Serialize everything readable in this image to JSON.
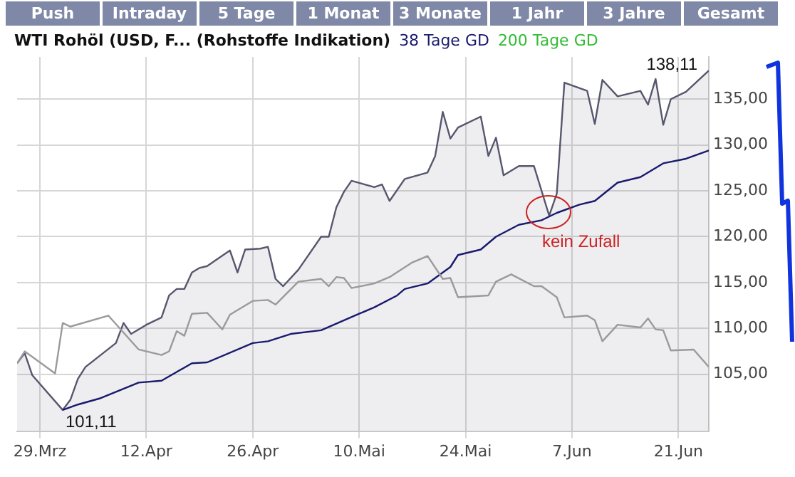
{
  "chart_data": {
    "type": "line",
    "title": "WTI Rohöl (USD, F... (Rohstoffe Indikation)",
    "annotations": [
      "Push",
      "Intraday",
      "5 Tage",
      "1 Monat",
      "3 Monate",
      "1 Jahr",
      "3 Jahre",
      "Gesamt",
      {
        "text": "kein Zufall",
        "x": "--06-04",
        "y": 122.5
      },
      {
        "text": "138,11",
        "x": "--06-25",
        "y": 138.11
      },
      {
        "text": "101,11",
        "x": "--04-01",
        "y": 101.11
      }
    ],
    "series": [
      {
        "type": "area",
        "color": "#56566e",
        "x": [
          "--03-26",
          "--03-27",
          "--03-28",
          "--04-01",
          "--04-02",
          "--04-03",
          "--04-04",
          "--04-06",
          "--04-08",
          "--04-09",
          "--04-10",
          "--04-12",
          "--04-14",
          "--04-15",
          "--04-16",
          "--04-17",
          "--04-18",
          "--04-19",
          "--04-20",
          "--04-23",
          "--04-24",
          "--04-25",
          "--04-27",
          "--04-28",
          "--04-29",
          "--04-30",
          "--05-02",
          "--05-05",
          "--05-06",
          "--05-07",
          "--05-08",
          "--05-09",
          "--05-12",
          "--05-13",
          "--05-14",
          "--05-16",
          "--05-19",
          "--05-20",
          "--05-21",
          "--05-22",
          "--05-23",
          "--05-26",
          "--05-27",
          "--05-28",
          "--05-29",
          "--05-31",
          "--06-02",
          "--06-04",
          "--06-05",
          "--06-06",
          "--06-09",
          "--06-10",
          "--06-11",
          "--06-13",
          "--06-16",
          "--06-17",
          "--06-18",
          "--06-19",
          "--06-20",
          "--06-22",
          "--06-25"
        ],
        "values": [
          106.2,
          107.3,
          104.9,
          101.11,
          102.2,
          104.5,
          105.8,
          107.1,
          108.4,
          110.6,
          109.4,
          110.4,
          111.2,
          113.6,
          114.3,
          114.3,
          116.1,
          116.6,
          116.8,
          118.5,
          116.1,
          118.6,
          118.7,
          118.9,
          115.4,
          114.6,
          116.4,
          120.0,
          120.0,
          123.2,
          124.9,
          126.1,
          125.4,
          125.7,
          123.9,
          126.3,
          127.0,
          128.8,
          133.6,
          130.7,
          131.9,
          133.1,
          128.8,
          130.8,
          126.7,
          127.7,
          127.7,
          122.3,
          124.7,
          136.8,
          135.9,
          132.3,
          137.1,
          135.3,
          135.9,
          134.4,
          137.2,
          132.2,
          135.0,
          135.8,
          138.11
        ]
      },
      {
        "name": "38 Tage GD",
        "color": "#1a1a6e",
        "x": [
          "--04-01",
          "--04-03",
          "--04-06",
          "--04-11",
          "--04-14",
          "--04-18",
          "--04-20",
          "--04-26",
          "--04-28",
          "--05-01",
          "--05-05",
          "--05-10",
          "--05-12",
          "--05-15",
          "--05-16",
          "--05-19",
          "--05-22",
          "--05-23",
          "--05-26",
          "--05-28",
          "--05-31",
          "--06-03",
          "--06-05",
          "--06-08",
          "--06-10",
          "--06-13",
          "--06-16",
          "--06-19",
          "--06-22",
          "--06-25"
        ],
        "values": [
          101.1,
          101.7,
          102.4,
          104.1,
          104.3,
          106.2,
          106.3,
          108.4,
          108.6,
          109.4,
          109.8,
          111.6,
          112.3,
          113.6,
          114.3,
          114.9,
          116.7,
          118.0,
          118.6,
          120.0,
          121.3,
          121.8,
          122.6,
          123.5,
          123.9,
          125.9,
          126.5,
          128.0,
          128.5,
          129.4
        ]
      },
      {
        "name": "200 Tage GD",
        "color": "#33bb33"
      },
      {
        "color": "#9a9a9a",
        "x": [
          "--03-26",
          "--03-27",
          "--03-31",
          "--04-01",
          "--04-02",
          "--04-07",
          "--04-11",
          "--04-14",
          "--04-15",
          "--04-16",
          "--04-17",
          "--04-18",
          "--04-20",
          "--04-21",
          "--04-22",
          "--04-23",
          "--04-26",
          "--04-28",
          "--04-29",
          "--05-02",
          "--05-05",
          "--05-06",
          "--05-07",
          "--05-08",
          "--05-09",
          "--05-12",
          "--05-14",
          "--05-17",
          "--05-19",
          "--05-21",
          "--05-22",
          "--05-23",
          "--05-27",
          "--05-28",
          "--05-30",
          "--06-02",
          "--06-03",
          "--06-05",
          "--06-06",
          "--06-09",
          "--06-10",
          "--06-11",
          "--06-13",
          "--06-16",
          "--06-17",
          "--06-18",
          "--06-19",
          "--06-20",
          "--06-23",
          "--06-25"
        ],
        "values": [
          106.2,
          107.5,
          105.1,
          110.6,
          110.2,
          111.4,
          107.7,
          107.1,
          107.5,
          109.7,
          109.2,
          111.6,
          111.7,
          110.8,
          109.9,
          111.5,
          113.0,
          113.1,
          112.6,
          115.1,
          115.4,
          114.6,
          115.6,
          115.5,
          114.4,
          114.9,
          115.6,
          117.2,
          117.9,
          115.4,
          115.5,
          113.4,
          113.6,
          115.1,
          115.9,
          114.6,
          114.6,
          113.4,
          111.2,
          111.4,
          110.9,
          108.6,
          110.4,
          110.1,
          111.1,
          109.9,
          109.8,
          107.6,
          107.7,
          105.8
        ]
      }
    ],
    "xlim": [
      "--03-26",
      "--06-25"
    ],
    "xticks": [
      {
        "value": "--03-29",
        "label": "29.Mrz"
      },
      {
        "value": "--04-12",
        "label": "12.Apr"
      },
      {
        "value": "--04-26",
        "label": "26.Apr"
      },
      {
        "value": "--05-10",
        "label": "10.Mai"
      },
      {
        "value": "--05-24",
        "label": "24.Mai"
      },
      {
        "value": "--06-07",
        "label": "7.Jun"
      },
      {
        "value": "--06-21",
        "label": "21.Jun"
      }
    ],
    "ylim": [
      98.8,
      139.6
    ],
    "yticks": [
      {
        "value": 105,
        "label": "105,00"
      },
      {
        "value": 110,
        "label": "110,00"
      },
      {
        "value": 115,
        "label": "115,00"
      },
      {
        "value": 120,
        "label": "120,00"
      },
      {
        "value": 125,
        "label": "125,00"
      },
      {
        "value": 130,
        "label": "130,00"
      },
      {
        "value": 135,
        "label": "135,00"
      }
    ],
    "grid": true,
    "legend": "top",
    "marker": "none",
    "line_style": "solid"
  }
}
